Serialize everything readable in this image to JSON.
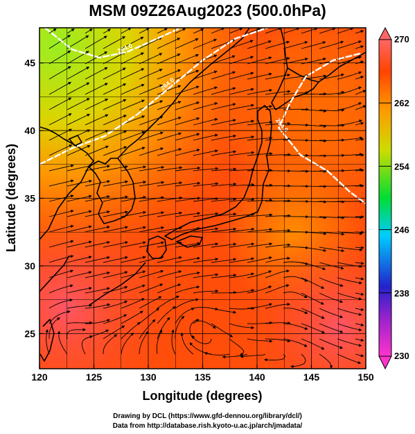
{
  "title": "MSM 09Z26Aug2023 (500.0hPa)",
  "axes": {
    "xlabel": "Longitude (degrees)",
    "ylabel": "Latitude  (degrees)",
    "xticks": [
      120,
      125,
      130,
      135,
      140,
      145,
      150
    ],
    "yticks": [
      25,
      30,
      35,
      40,
      45
    ],
    "xlim": [
      120,
      150
    ],
    "ylim": [
      22.4,
      47.6
    ]
  },
  "colorbar": {
    "ticks": [
      270,
      262,
      254,
      246,
      238,
      230
    ],
    "range": [
      230,
      270
    ],
    "colors": [
      "#ff33cc",
      "#2222cc",
      "#00ccff",
      "#00dd33",
      "#ccdd00",
      "#ff9900",
      "#ff4400",
      "#ff6666"
    ]
  },
  "contours": [
    {
      "label": "264.0",
      "points": [
        [
          120.5,
          47.6
        ],
        [
          123,
          46
        ],
        [
          125.5,
          45.4
        ],
        [
          128,
          45.8
        ],
        [
          130,
          46.5
        ],
        [
          133,
          47.6
        ]
      ]
    },
    {
      "label": "264.0",
      "points": [
        [
          120,
          37.5
        ],
        [
          123,
          38.7
        ],
        [
          126,
          39.6
        ],
        [
          129,
          41.2
        ],
        [
          132,
          43.2
        ],
        [
          135,
          45.2
        ],
        [
          138,
          46.8
        ],
        [
          141,
          47.6
        ]
      ]
    },
    {
      "label": "264.0",
      "points": [
        [
          149.5,
          45.7
        ],
        [
          147,
          45.2
        ],
        [
          144.5,
          44
        ],
        [
          143,
          42
        ],
        [
          142,
          40.2
        ],
        [
          144,
          38.2
        ],
        [
          146.5,
          37
        ],
        [
          148.5,
          35.5
        ],
        [
          150,
          34.6
        ]
      ]
    }
  ],
  "credits": [
    "Drawing by DCL (https://www.gfd-dennou.org/library/dcl/)",
    "Data from http://database.rish.kyoto-u.ac.jp/arch/jmadata/"
  ]
}
